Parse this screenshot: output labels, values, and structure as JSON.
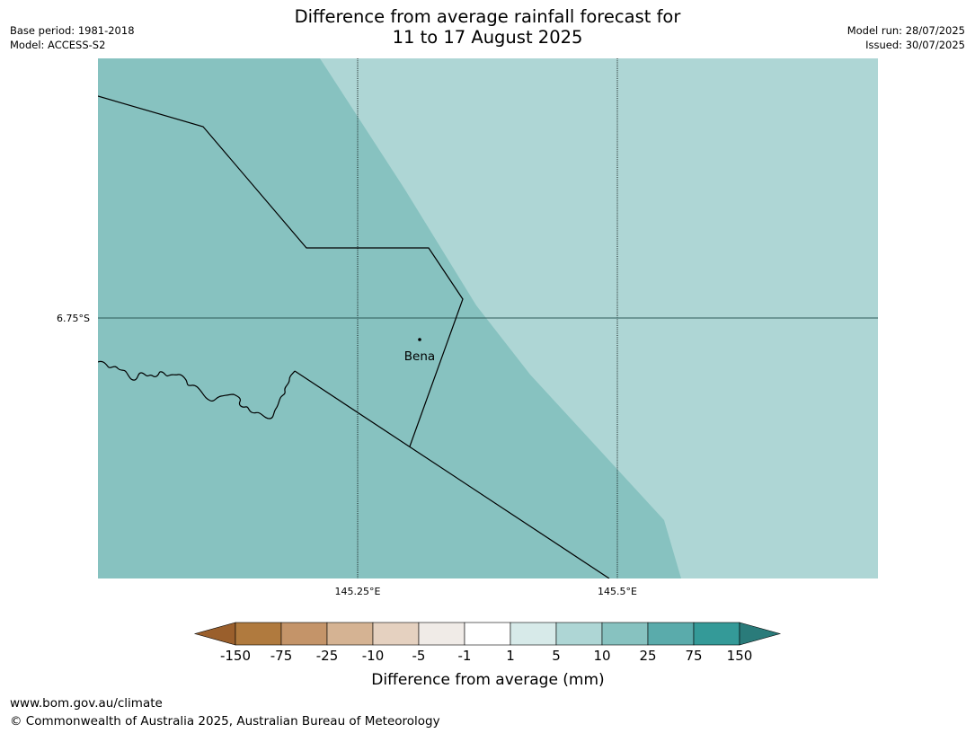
{
  "header": {
    "title_line1": "Difference from average rainfall forecast for",
    "title_line2": "11 to 17 August 2025",
    "base_period": "Base period: 1981-2018",
    "model": "Model: ACCESS-S2",
    "model_run": "Model run: 28/07/2025",
    "issued": "Issued: 30/07/2025"
  },
  "map": {
    "place_label": "Bena",
    "lat_labels": [
      "6.75°S"
    ],
    "lon_labels": [
      "145.25°E",
      "145.5°E"
    ],
    "fill_colors": {
      "band_10_25": "#87c2c0",
      "band_5_10": "#aed6d5"
    }
  },
  "legend": {
    "label": "Difference from average (mm)",
    "ticks": [
      "-150",
      "-75",
      "-25",
      "-10",
      "-5",
      "-1",
      "1",
      "5",
      "10",
      "25",
      "75",
      "150"
    ],
    "colors": [
      "#9a5f2c",
      "#b07a3e",
      "#c49469",
      "#d5b393",
      "#e5d1c0",
      "#f0ebe7",
      "#ffffff",
      "#d7eae9",
      "#aed6d5",
      "#87c2c0",
      "#5aabab",
      "#349a98",
      "#2a7b7a"
    ]
  },
  "footer": {
    "url": "www.bom.gov.au/climate",
    "copyright": "© Commonwealth of Australia 2025, Australian Bureau of Meteorology"
  }
}
